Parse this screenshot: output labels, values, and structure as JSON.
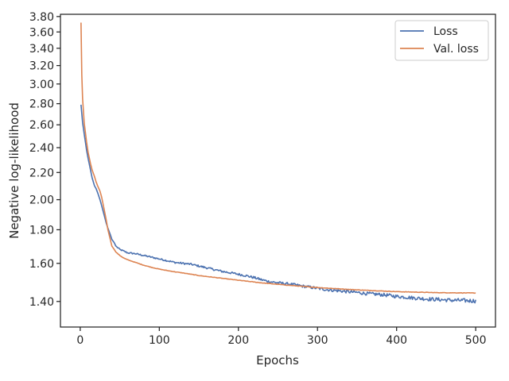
{
  "chart_data": {
    "type": "line",
    "title": "",
    "xlabel": "Epochs",
    "ylabel": "Negative log-likelihood",
    "xlim": [
      -25,
      525
    ],
    "ylim": [
      1.28,
      3.83
    ],
    "y_scale": "log",
    "grid": false,
    "legend_position": "top-right",
    "x_ticks": [
      0,
      100,
      200,
      300,
      400,
      500
    ],
    "x_tick_labels": [
      "0",
      "100",
      "200",
      "300",
      "400",
      "500"
    ],
    "y_ticks": [
      1.4,
      1.6,
      1.8,
      2.0,
      2.2,
      2.4,
      2.6,
      2.8,
      3.0,
      3.2,
      3.4,
      3.6,
      3.8
    ],
    "y_tick_labels": [
      "1.40",
      "1.60",
      "1.80",
      "2.00",
      "2.20",
      "2.40",
      "2.60",
      "2.80",
      "3.00",
      "3.20",
      "3.40",
      "3.60",
      "3.80"
    ],
    "series": [
      {
        "name": "Loss",
        "color": "#4c72b0",
        "noise": 0.004,
        "x": [
          1,
          3,
          5,
          8,
          10,
          13,
          15,
          18,
          20,
          22,
          25,
          27,
          30,
          33,
          35,
          38,
          40,
          43,
          45,
          50,
          55,
          60,
          70,
          80,
          90,
          100,
          110,
          120,
          130,
          140,
          150,
          160,
          170,
          180,
          190,
          200,
          210,
          220,
          230,
          240,
          250,
          260,
          270,
          280,
          290,
          300,
          310,
          320,
          330,
          340,
          350,
          360,
          370,
          380,
          390,
          400,
          410,
          420,
          430,
          440,
          450,
          460,
          470,
          480,
          490,
          500
        ],
        "y": [
          2.79,
          2.62,
          2.52,
          2.38,
          2.31,
          2.22,
          2.16,
          2.1,
          2.08,
          2.05,
          2.0,
          1.96,
          1.9,
          1.84,
          1.81,
          1.77,
          1.74,
          1.72,
          1.7,
          1.68,
          1.67,
          1.66,
          1.655,
          1.645,
          1.635,
          1.625,
          1.615,
          1.605,
          1.6,
          1.595,
          1.585,
          1.575,
          1.565,
          1.555,
          1.548,
          1.54,
          1.532,
          1.522,
          1.51,
          1.5,
          1.495,
          1.49,
          1.485,
          1.478,
          1.472,
          1.466,
          1.46,
          1.456,
          1.452,
          1.448,
          1.445,
          1.44,
          1.437,
          1.434,
          1.43,
          1.425,
          1.422,
          1.418,
          1.415,
          1.412,
          1.41,
          1.408,
          1.406,
          1.405,
          1.404,
          1.403
        ]
      },
      {
        "name": "Val. loss",
        "color": "#dd8452",
        "noise": 0.0012,
        "x": [
          1,
          2,
          3,
          5,
          8,
          10,
          13,
          15,
          18,
          20,
          22,
          25,
          27,
          30,
          33,
          35,
          38,
          40,
          43,
          45,
          50,
          55,
          60,
          70,
          80,
          90,
          100,
          110,
          120,
          130,
          140,
          150,
          170,
          200,
          230,
          260,
          300,
          350,
          400,
          450,
          500
        ],
        "y": [
          3.72,
          3.1,
          2.85,
          2.62,
          2.45,
          2.36,
          2.27,
          2.22,
          2.17,
          2.13,
          2.1,
          2.06,
          2.02,
          1.94,
          1.86,
          1.8,
          1.74,
          1.7,
          1.68,
          1.665,
          1.645,
          1.63,
          1.62,
          1.605,
          1.59,
          1.578,
          1.568,
          1.56,
          1.553,
          1.547,
          1.54,
          1.533,
          1.523,
          1.508,
          1.494,
          1.483,
          1.47,
          1.458,
          1.449,
          1.444,
          1.442
        ]
      }
    ]
  }
}
